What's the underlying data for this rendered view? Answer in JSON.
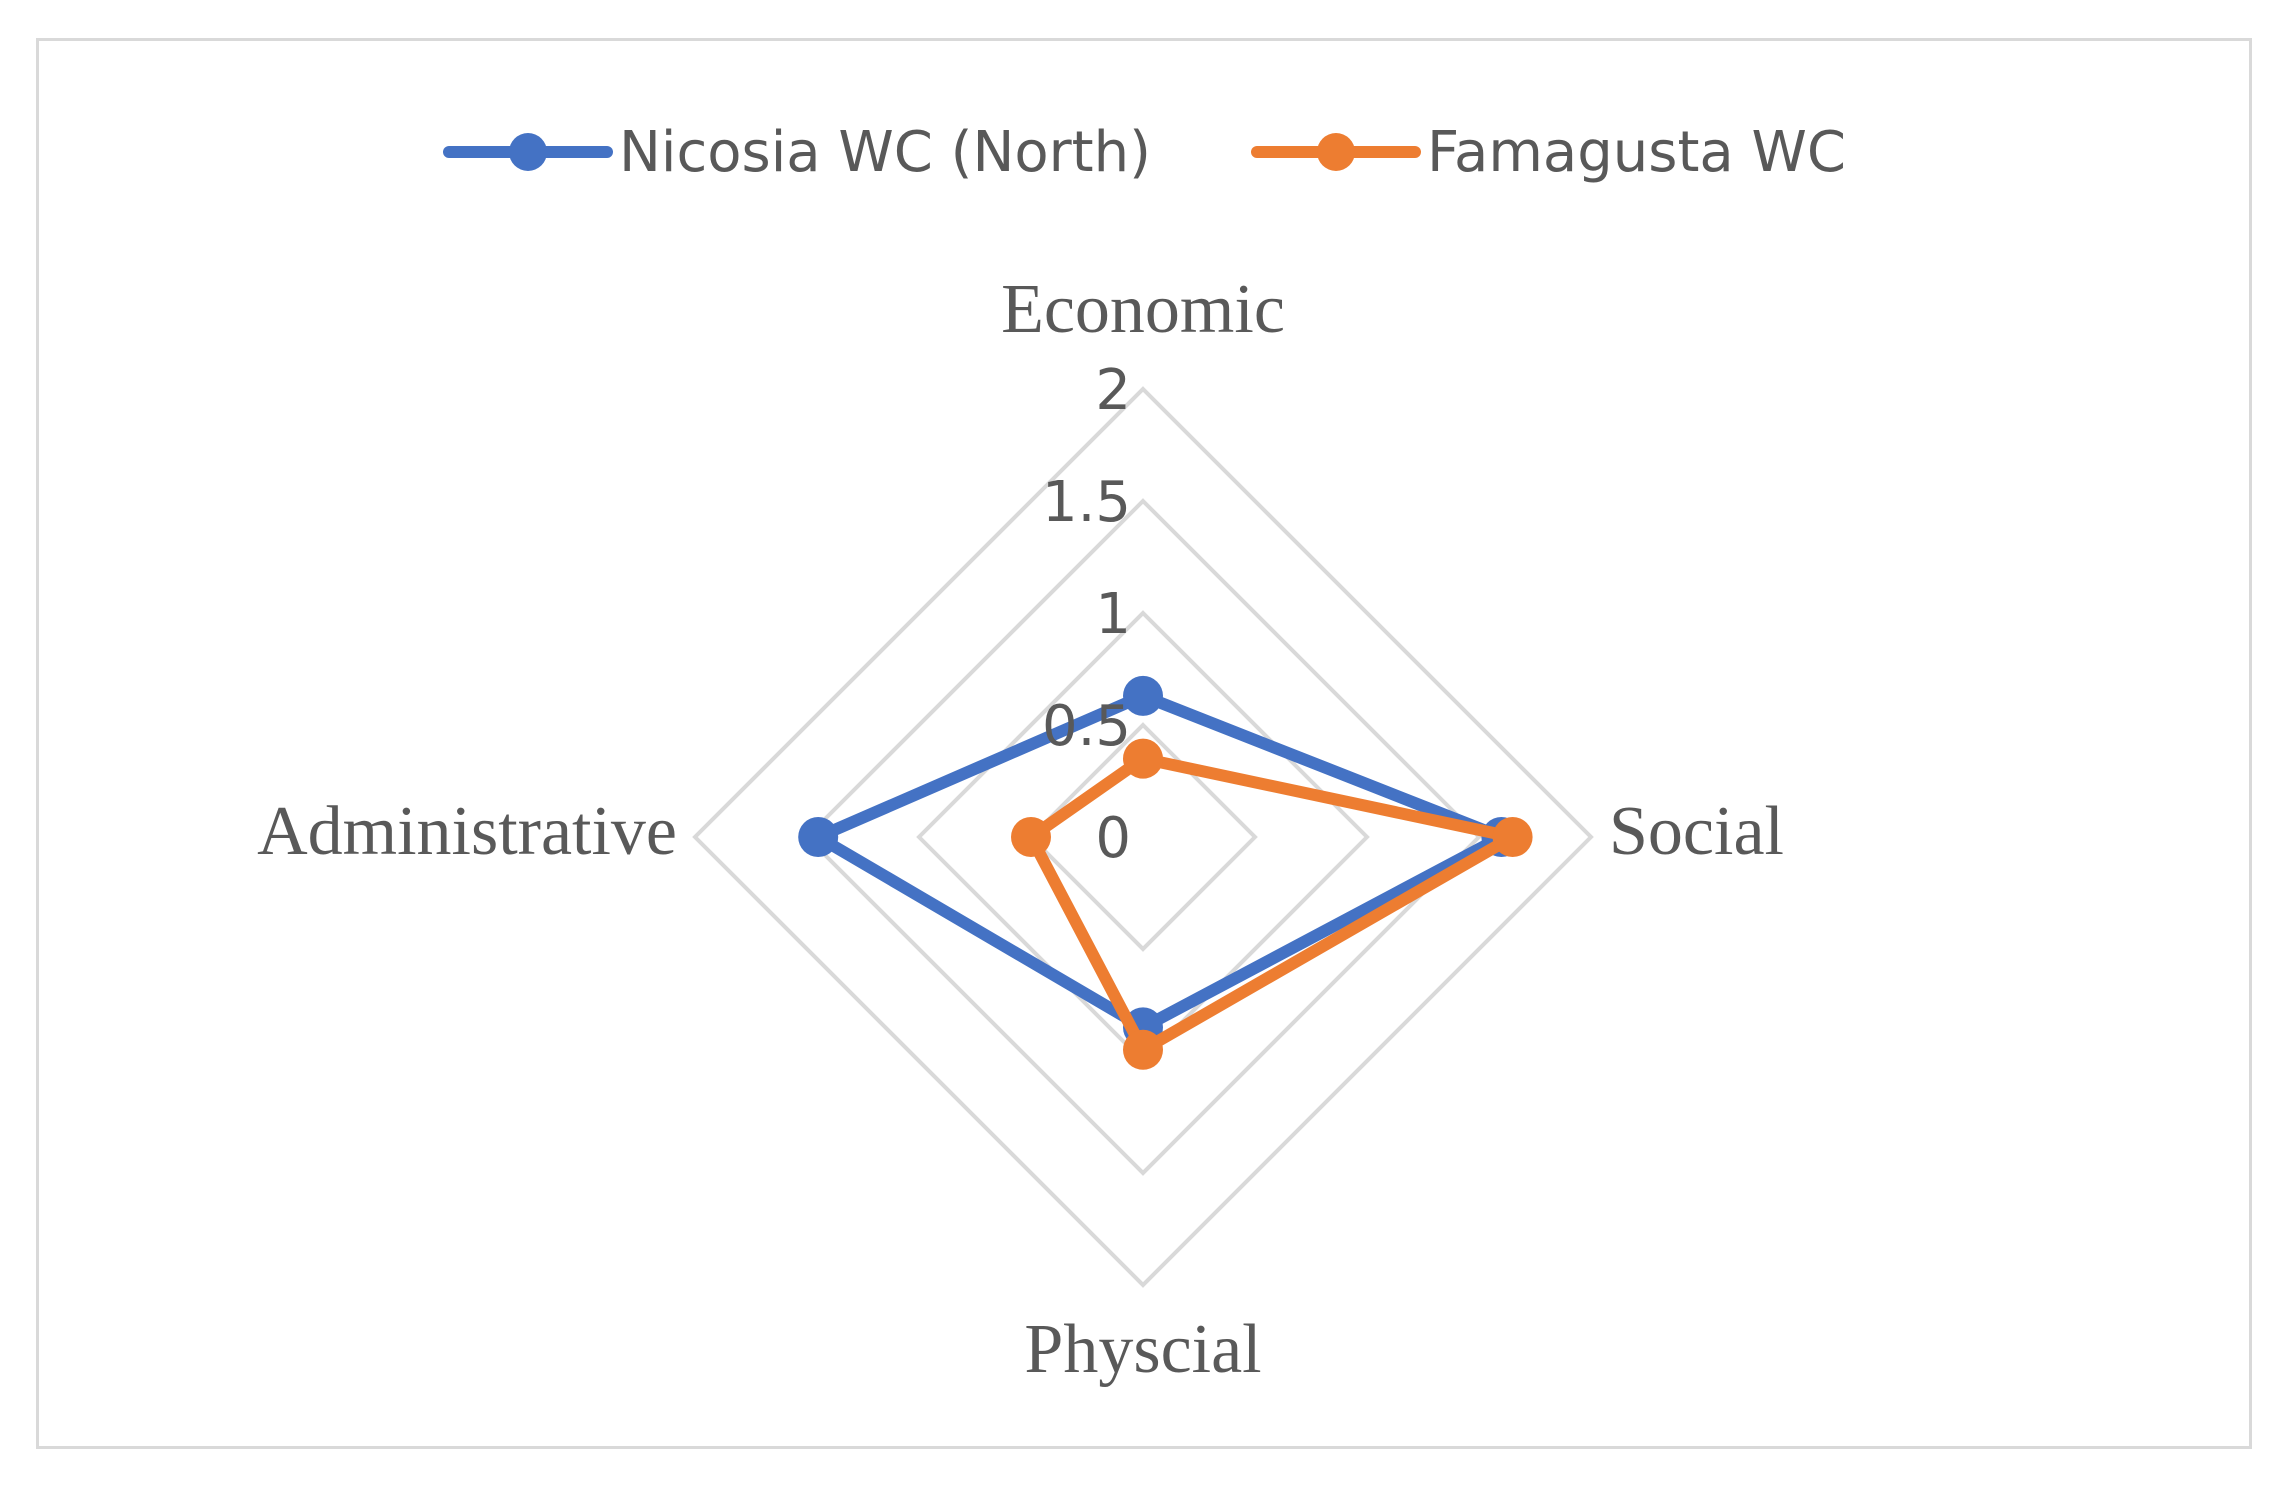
{
  "chart_data": {
    "type": "radar",
    "title": "",
    "axes": [
      "Economic",
      "Social",
      "Physcial",
      "Administrative"
    ],
    "ticks": [
      "0",
      "0.5",
      "1",
      "1.5",
      "2"
    ],
    "range": [
      0,
      2
    ],
    "grid": true,
    "legend_position": "top",
    "series": [
      {
        "name": "Nicosia WC (North)",
        "color": "#4472c4",
        "values": [
          0.63,
          1.6,
          0.85,
          1.45
        ]
      },
      {
        "name": "Famagusta WC",
        "color": "#ed7d31",
        "values": [
          0.35,
          1.65,
          0.95,
          0.5
        ]
      }
    ],
    "grid_color": "#d9d9d9",
    "text_color": "#595959"
  }
}
